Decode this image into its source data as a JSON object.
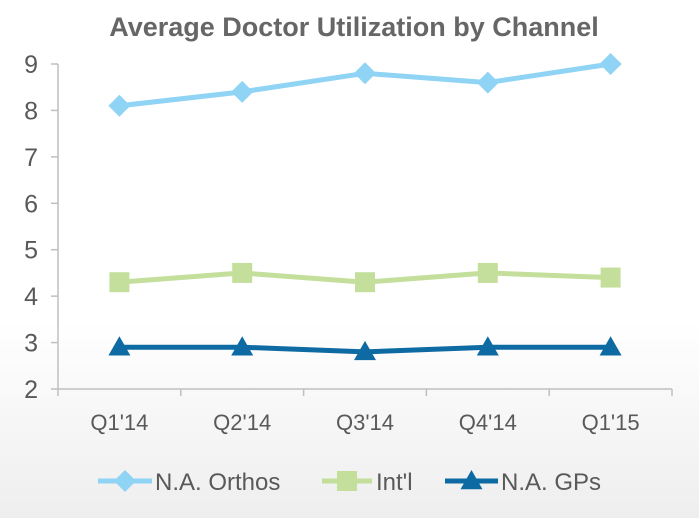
{
  "chart_data": {
    "type": "line",
    "title": "Average Doctor Utilization by Channel",
    "categories": [
      "Q1'14",
      "Q2'14",
      "Q3'14",
      "Q4'14",
      "Q1'15"
    ],
    "ylim": [
      2,
      9
    ],
    "yticks": [
      "2",
      "3",
      "4",
      "5",
      "6",
      "7",
      "8",
      "9"
    ],
    "grid": false,
    "legend": "bottom",
    "series": [
      {
        "name": "N.A. Orthos",
        "values": [
          8.1,
          8.4,
          8.8,
          8.6,
          9.0
        ],
        "color": "#8fd3f5",
        "marker": "diamond"
      },
      {
        "name": "Int'l",
        "values": [
          4.3,
          4.5,
          4.3,
          4.5,
          4.4
        ],
        "color": "#c4df9b",
        "marker": "square"
      },
      {
        "name": "N.A. GPs",
        "values": [
          2.9,
          2.9,
          2.8,
          2.9,
          2.9
        ],
        "color": "#0e6aa3",
        "marker": "triangle"
      }
    ]
  }
}
